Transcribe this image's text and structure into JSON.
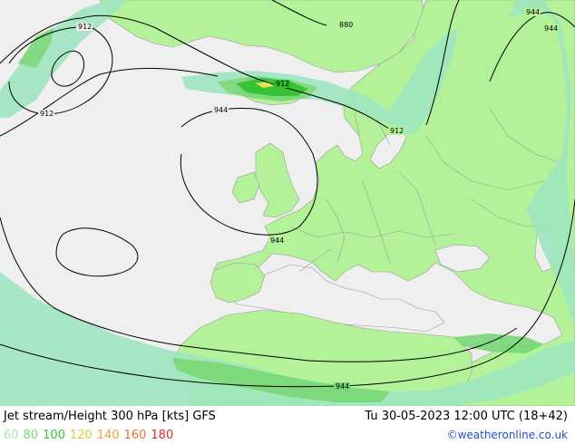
{
  "map": {
    "contours": [
      {
        "label": "912"
      },
      {
        "label": "880"
      },
      {
        "label": "944"
      },
      {
        "label": "912"
      },
      {
        "label": "944"
      },
      {
        "label": "944"
      },
      {
        "label": "912"
      },
      {
        "label": "912"
      },
      {
        "label": "944"
      },
      {
        "label": "944"
      }
    ],
    "colors": {
      "sea": "#efefef",
      "land": "#b4f29a",
      "jet_60": "#a0e6c0",
      "jet_80": "#78d878",
      "jet_100": "#2abf2a",
      "jet_120": "#f0e050",
      "border": "#9a9a9a",
      "contour": "#000000"
    }
  },
  "footer": {
    "title": "Jet stream/Height 300 hPa [kts] GFS",
    "valid_time": "Tu 30-05-2023 12:00 UTC (18+42)",
    "credit": "©weatheronline.co.uk",
    "legend": [
      {
        "value": "60",
        "color": "#a8e6b4"
      },
      {
        "value": "80",
        "color": "#7cd87c"
      },
      {
        "value": "100",
        "color": "#32c832"
      },
      {
        "value": "120",
        "color": "#e0c840"
      },
      {
        "value": "140",
        "color": "#f0a040"
      },
      {
        "value": "160",
        "color": "#f07030"
      },
      {
        "value": "180",
        "color": "#e03030"
      }
    ]
  }
}
